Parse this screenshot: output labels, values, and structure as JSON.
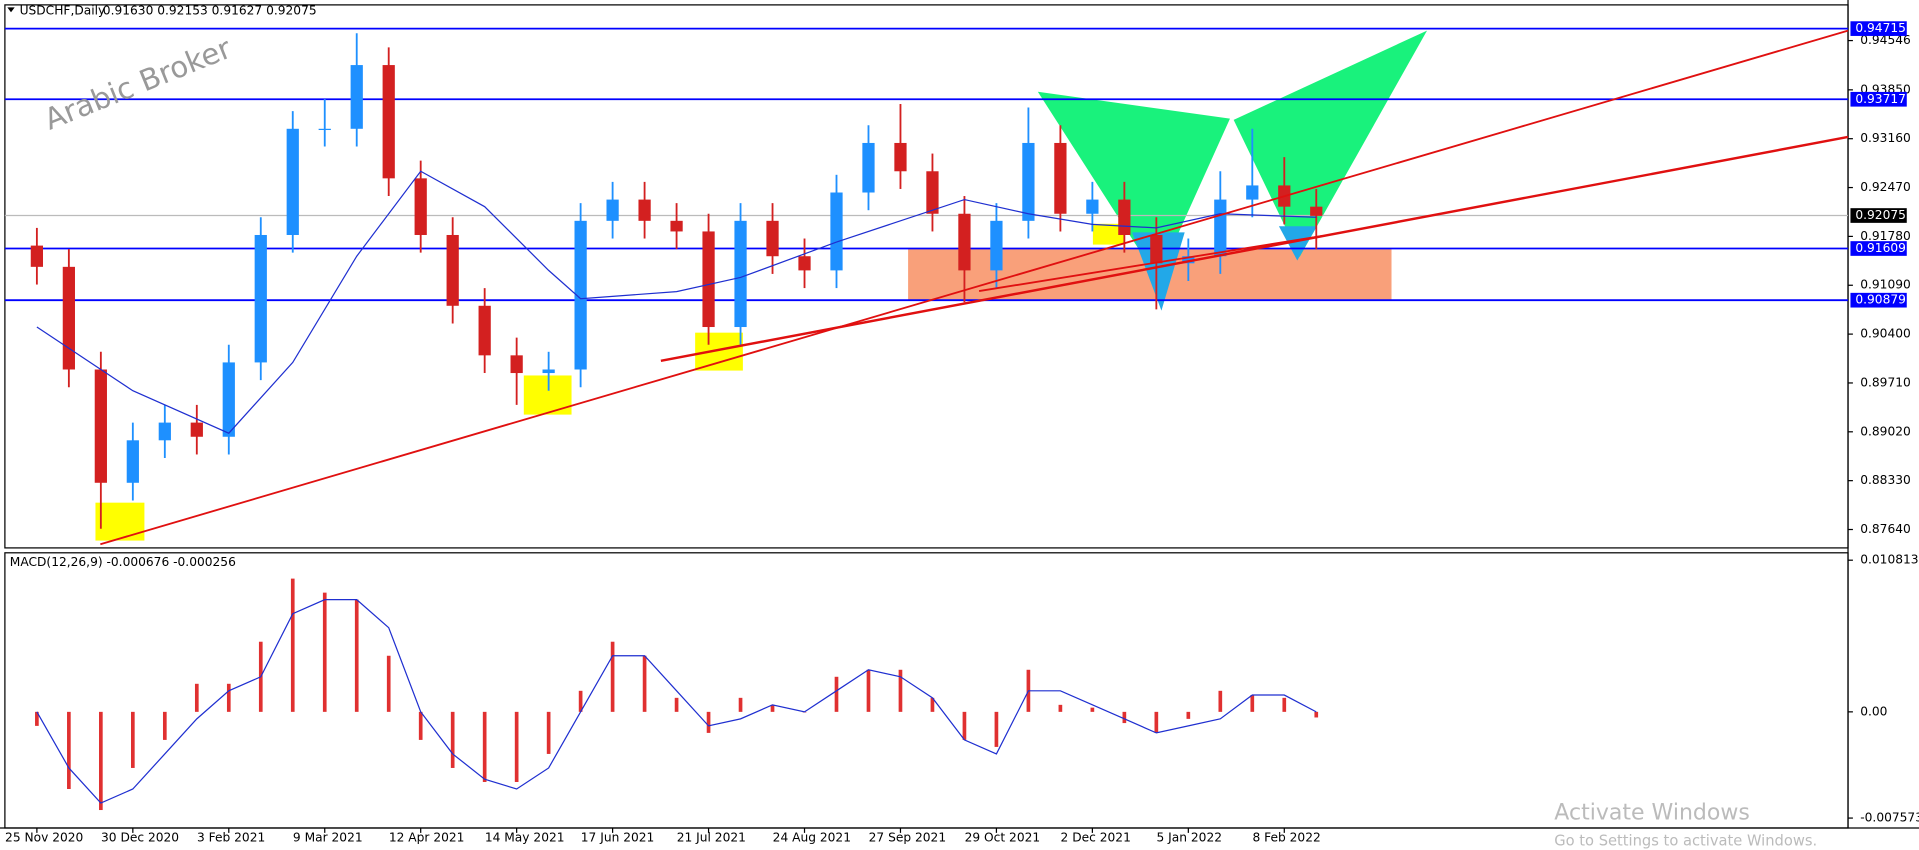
{
  "chart_data": [
    {
      "type": "candlestick",
      "title": "USDCHF,Daily",
      "subtitle": "0.91630 0.92153 0.91627 0.92075",
      "up_color": "#1e90ff",
      "down_color": "#d32020",
      "x": [
        0,
        8,
        16,
        24,
        32,
        40,
        48,
        56,
        64,
        72,
        80,
        88,
        96,
        104,
        112,
        120,
        128,
        136,
        144,
        152,
        160,
        168,
        176,
        184,
        192,
        200,
        208,
        216,
        224,
        232,
        240,
        248,
        256,
        264,
        272,
        280,
        288,
        296,
        304,
        312,
        320
      ],
      "open": [
        0.9165,
        0.9135,
        0.899,
        0.883,
        0.889,
        0.8915,
        0.8895,
        0.9,
        0.918,
        0.933,
        0.933,
        0.942,
        0.926,
        0.918,
        0.908,
        0.901,
        0.8985,
        0.899,
        0.92,
        0.923,
        0.92,
        0.9185,
        0.905,
        0.92,
        0.915,
        0.913,
        0.924,
        0.931,
        0.927,
        0.921,
        0.913,
        0.92,
        0.931,
        0.921,
        0.923,
        0.918,
        0.914,
        0.915,
        0.923,
        0.925,
        0.922
      ],
      "high": [
        0.919,
        0.916,
        0.9015,
        0.8915,
        0.894,
        0.894,
        0.9025,
        0.9205,
        0.9355,
        0.9372,
        0.9465,
        0.9445,
        0.9285,
        0.9205,
        0.9105,
        0.9035,
        0.9015,
        0.9225,
        0.9255,
        0.9255,
        0.9225,
        0.921,
        0.9225,
        0.9225,
        0.9175,
        0.9265,
        0.9335,
        0.9365,
        0.9295,
        0.9235,
        0.9225,
        0.936,
        0.9335,
        0.9255,
        0.9255,
        0.9205,
        0.9175,
        0.927,
        0.933,
        0.929,
        0.9245
      ],
      "low": [
        0.911,
        0.8965,
        0.8765,
        0.8805,
        0.8865,
        0.887,
        0.887,
        0.8975,
        0.9155,
        0.9305,
        0.9305,
        0.9235,
        0.9155,
        0.9055,
        0.8985,
        0.894,
        0.896,
        0.8965,
        0.9175,
        0.9175,
        0.916,
        0.9025,
        0.9025,
        0.9125,
        0.9105,
        0.9105,
        0.9215,
        0.9245,
        0.9185,
        0.9085,
        0.9105,
        0.9175,
        0.9185,
        0.9185,
        0.9155,
        0.9075,
        0.9115,
        0.9125,
        0.9205,
        0.9195,
        0.916
      ],
      "close": [
        0.9135,
        0.899,
        0.883,
        0.889,
        0.8915,
        0.8895,
        0.9,
        0.918,
        0.933,
        0.933,
        0.942,
        0.926,
        0.918,
        0.908,
        0.901,
        0.8985,
        0.899,
        0.92,
        0.923,
        0.92,
        0.9185,
        0.905,
        0.92,
        0.915,
        0.913,
        0.924,
        0.931,
        0.927,
        0.921,
        0.913,
        0.92,
        0.931,
        0.921,
        0.923,
        0.918,
        0.914,
        0.915,
        0.923,
        0.925,
        0.922,
        0.9207
      ],
      "ma": {
        "color": "#1f2fd0",
        "x": [
          0,
          24,
          48,
          64,
          80,
          96,
          112,
          128,
          136,
          160,
          176,
          200,
          232,
          248,
          264,
          280,
          296,
          320
        ],
        "values": [
          0.905,
          0.896,
          0.89,
          0.9,
          0.915,
          0.927,
          0.922,
          0.913,
          0.909,
          0.91,
          0.912,
          0.917,
          0.923,
          0.921,
          0.9195,
          0.919,
          0.921,
          0.9205
        ]
      },
      "levels": [
        {
          "value": 0.94715,
          "color": "#0000ff"
        },
        {
          "value": 0.93717,
          "color": "#0000ff"
        },
        {
          "value": 0.91609,
          "color": "#0000ff"
        },
        {
          "value": 0.90879,
          "color": "#0000ff"
        }
      ],
      "last": 0.92075,
      "xlim": [
        -8,
        453
      ],
      "ylim": [
        0.8738,
        0.9505
      ],
      "yticks": [
        {
          "value": 0.94546,
          "label": "0.94546"
        },
        {
          "value": 0.9385,
          "label": "0.93850"
        },
        {
          "value": 0.9316,
          "label": "0.93160"
        },
        {
          "value": 0.9247,
          "label": "0.92470"
        },
        {
          "value": 0.9178,
          "label": "0.91780"
        },
        {
          "value": 0.9109,
          "label": "0.91090"
        },
        {
          "value": 0.904,
          "label": "0.90400"
        },
        {
          "value": 0.8971,
          "label": "0.89710"
        },
        {
          "value": 0.8902,
          "label": "0.89020"
        },
        {
          "value": 0.8833,
          "label": "0.88330"
        },
        {
          "value": 0.8764,
          "label": "0.87640"
        }
      ],
      "xticks": [
        {
          "value": 0,
          "label": "25 Nov 2020"
        },
        {
          "value": 24,
          "label": "30 Dec 2020"
        },
        {
          "value": 48,
          "label": "3 Feb 2021"
        },
        {
          "value": 72,
          "label": "9 Mar 2021"
        },
        {
          "value": 96,
          "label": "12 Apr 2021"
        },
        {
          "value": 120,
          "label": "14 May 2021"
        },
        {
          "value": 144,
          "label": "17 Jun 2021"
        },
        {
          "value": 168,
          "label": "21 Jul 2021"
        },
        {
          "value": 192,
          "label": "24 Aug 2021"
        },
        {
          "value": 216,
          "label": "27 Sep 2021"
        },
        {
          "value": 240,
          "label": "29 Oct 2021"
        },
        {
          "value": 264,
          "label": "2 Dec 2021"
        },
        {
          "value": 288,
          "label": "5 Jan 2022"
        },
        {
          "value": 312,
          "label": "8 Feb 2022"
        }
      ]
    },
    {
      "type": "macd",
      "title": "MACD(12,26,9) -0.000676 -0.000256",
      "x": [
        0,
        8,
        16,
        24,
        32,
        40,
        48,
        56,
        64,
        72,
        80,
        88,
        96,
        104,
        112,
        120,
        128,
        136,
        144,
        152,
        160,
        168,
        176,
        184,
        192,
        200,
        208,
        216,
        224,
        232,
        240,
        248,
        256,
        264,
        272,
        280,
        288,
        296,
        304,
        312,
        320
      ],
      "series": [
        {
          "name": "MACD",
          "color": "#e03030",
          "values": [
            -0.001,
            -0.0055,
            -0.007,
            -0.004,
            -0.002,
            0.002,
            0.002,
            0.005,
            0.0095,
            0.0085,
            0.008,
            0.004,
            -0.002,
            -0.004,
            -0.005,
            -0.005,
            -0.003,
            0.0015,
            0.005,
            0.004,
            0.001,
            -0.0015,
            0.001,
            0.0005,
            0,
            0.0025,
            0.003,
            0.003,
            0.001,
            -0.002,
            -0.0025,
            0.003,
            0.0005,
            0.0003,
            -0.0008,
            -0.0015,
            -0.0005,
            0.0015,
            0.0012,
            0.001,
            -0.0004
          ]
        },
        {
          "name": "Signal",
          "color": "#1f2fd0",
          "values": [
            0,
            -0.004,
            -0.0065,
            -0.0055,
            -0.003,
            -0.0005,
            0.0015,
            0.0025,
            0.007,
            0.008,
            0.008,
            0.006,
            0,
            -0.003,
            -0.0048,
            -0.0055,
            -0.004,
            0,
            0.004,
            0.004,
            0.0015,
            -0.001,
            -0.0005,
            0.0005,
            0,
            0.0015,
            0.003,
            0.0025,
            0.001,
            -0.002,
            -0.003,
            0.0015,
            0.0015,
            0.0005,
            -0.0005,
            -0.0015,
            -0.001,
            -0.0005,
            0.0012,
            0.0012,
            0
          ]
        }
      ],
      "xlim": [
        -8,
        453
      ],
      "ylim": [
        -0.00828,
        0.01134
      ],
      "yticks": [
        {
          "value": 0.010813,
          "label": "0.010813"
        },
        {
          "value": 0,
          "label": "0.00"
        },
        {
          "value": -0.007573,
          "label": "-0.007573"
        }
      ]
    }
  ],
  "watermark": "Arabic Broker",
  "os_notice": {
    "title": "Activate Windows",
    "subtitle": "Go to Settings to activate Windows."
  }
}
